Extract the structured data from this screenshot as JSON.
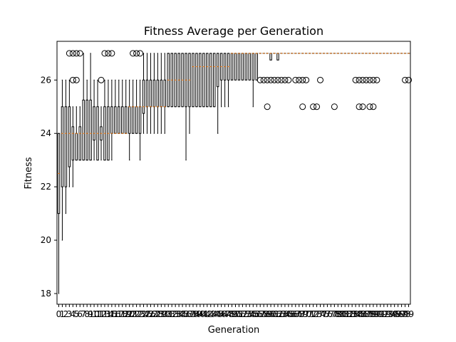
{
  "chart_data": {
    "type": "box",
    "title": "Fitness Average per Generation",
    "xlabel": "Generation",
    "ylabel": "Fitness",
    "ylim": [
      17.6,
      27.45
    ],
    "y_ticks": [
      18,
      20,
      22,
      24,
      26
    ],
    "grid": false,
    "legend": "none",
    "colors": {
      "box": "#000000",
      "median": "#ff7f0e",
      "outlier": "#000000"
    },
    "generations_total": 100,
    "boxes": [
      {
        "gen": 0,
        "q1": 21.0,
        "median": 22.5,
        "q3": 24.0,
        "whislo": 18,
        "whishi": 24,
        "fliers": []
      },
      {
        "gen": 1,
        "q1": 22.0,
        "median": 24.0,
        "q3": 25.0,
        "whislo": 20,
        "whishi": 26,
        "fliers": []
      },
      {
        "gen": 2,
        "q1": 22.0,
        "median": 24.0,
        "q3": 25.0,
        "whislo": 21,
        "whishi": 26,
        "fliers": []
      },
      {
        "gen": 3,
        "q1": 22.75,
        "median": 24.0,
        "q3": 25.0,
        "whislo": 22,
        "whishi": 26,
        "fliers": [
          27
        ]
      },
      {
        "gen": 4,
        "q1": 23.0,
        "median": 24.0,
        "q3": 24.25,
        "whislo": 22,
        "whishi": 25,
        "fliers": [
          26,
          27
        ]
      },
      {
        "gen": 5,
        "q1": 23.0,
        "median": 24.0,
        "q3": 24.0,
        "whislo": 23,
        "whishi": 25,
        "fliers": [
          26,
          27
        ]
      },
      {
        "gen": 6,
        "q1": 23.0,
        "median": 24.0,
        "q3": 24.25,
        "whislo": 23,
        "whishi": 25,
        "fliers": [
          27
        ]
      },
      {
        "gen": 7,
        "q1": 23.0,
        "median": 24.0,
        "q3": 25.25,
        "whislo": 23,
        "whishi": 27,
        "fliers": []
      },
      {
        "gen": 8,
        "q1": 23.0,
        "median": 24.0,
        "q3": 25.25,
        "whislo": 23,
        "whishi": 26,
        "fliers": []
      },
      {
        "gen": 9,
        "q1": 23.0,
        "median": 24.0,
        "q3": 25.25,
        "whislo": 23,
        "whishi": 27,
        "fliers": []
      },
      {
        "gen": 10,
        "q1": 23.75,
        "median": 24.0,
        "q3": 25.0,
        "whislo": 23,
        "whishi": 26,
        "fliers": []
      },
      {
        "gen": 11,
        "q1": 23.0,
        "median": 24.0,
        "q3": 25.0,
        "whislo": 23,
        "whishi": 26,
        "fliers": []
      },
      {
        "gen": 12,
        "q1": 23.75,
        "median": 24.0,
        "q3": 24.25,
        "whislo": 23,
        "whishi": 25,
        "fliers": [
          26
        ]
      },
      {
        "gen": 13,
        "q1": 23.0,
        "median": 24.0,
        "q3": 25.0,
        "whislo": 23,
        "whishi": 26,
        "fliers": [
          27
        ]
      },
      {
        "gen": 14,
        "q1": 23.0,
        "median": 24.0,
        "q3": 25.0,
        "whislo": 23,
        "whishi": 26,
        "fliers": [
          27
        ]
      },
      {
        "gen": 15,
        "q1": 24.0,
        "median": 24.0,
        "q3": 25.0,
        "whislo": 23,
        "whishi": 26,
        "fliers": [
          27
        ]
      },
      {
        "gen": 16,
        "q1": 24.0,
        "median": 24.0,
        "q3": 25.0,
        "whislo": 24,
        "whishi": 26,
        "fliers": []
      },
      {
        "gen": 17,
        "q1": 24.0,
        "median": 24.0,
        "q3": 25.0,
        "whislo": 24,
        "whishi": 26,
        "fliers": []
      },
      {
        "gen": 18,
        "q1": 24.0,
        "median": 24.0,
        "q3": 25.0,
        "whislo": 24,
        "whishi": 26,
        "fliers": []
      },
      {
        "gen": 19,
        "q1": 24.0,
        "median": 24.0,
        "q3": 25.0,
        "whislo": 24,
        "whishi": 26,
        "fliers": []
      },
      {
        "gen": 20,
        "q1": 24.0,
        "median": 25.0,
        "q3": 25.0,
        "whislo": 23,
        "whishi": 26,
        "fliers": []
      },
      {
        "gen": 21,
        "q1": 24.0,
        "median": 25.0,
        "q3": 25.0,
        "whislo": 24,
        "whishi": 26,
        "fliers": [
          27
        ]
      },
      {
        "gen": 22,
        "q1": 24.0,
        "median": 25.0,
        "q3": 25.0,
        "whislo": 24,
        "whishi": 26,
        "fliers": [
          27
        ]
      },
      {
        "gen": 23,
        "q1": 24.0,
        "median": 25.0,
        "q3": 25.0,
        "whislo": 23,
        "whishi": 26,
        "fliers": [
          27
        ]
      },
      {
        "gen": 24,
        "q1": 24.75,
        "median": 25.0,
        "q3": 26.0,
        "whislo": 24,
        "whishi": 27,
        "fliers": []
      },
      {
        "gen": 25,
        "q1": 25.0,
        "median": 25.0,
        "q3": 26.0,
        "whislo": 24,
        "whishi": 27,
        "fliers": []
      },
      {
        "gen": 26,
        "q1": 25.0,
        "median": 25.0,
        "q3": 26.0,
        "whislo": 24,
        "whishi": 27,
        "fliers": []
      },
      {
        "gen": 27,
        "q1": 25.0,
        "median": 25.0,
        "q3": 26.0,
        "whislo": 24,
        "whishi": 27,
        "fliers": []
      },
      {
        "gen": 28,
        "q1": 25.0,
        "median": 25.0,
        "q3": 26.0,
        "whislo": 24,
        "whishi": 27,
        "fliers": []
      },
      {
        "gen": 29,
        "q1": 25.0,
        "median": 25.0,
        "q3": 26.0,
        "whislo": 24,
        "whishi": 27,
        "fliers": []
      },
      {
        "gen": 30,
        "q1": 25.0,
        "median": 25.0,
        "q3": 26.0,
        "whislo": 24,
        "whishi": 27,
        "fliers": []
      },
      {
        "gen": 31,
        "q1": 25.0,
        "median": 26.0,
        "q3": 27.0,
        "whislo": 25,
        "whishi": 27,
        "fliers": []
      },
      {
        "gen": 32,
        "q1": 25.0,
        "median": 26.0,
        "q3": 27.0,
        "whislo": 25,
        "whishi": 27,
        "fliers": []
      },
      {
        "gen": 33,
        "q1": 25.0,
        "median": 26.0,
        "q3": 27.0,
        "whislo": 25,
        "whishi": 27,
        "fliers": []
      },
      {
        "gen": 34,
        "q1": 25.0,
        "median": 26.0,
        "q3": 27.0,
        "whislo": 25,
        "whishi": 27,
        "fliers": []
      },
      {
        "gen": 35,
        "q1": 25.0,
        "median": 26.0,
        "q3": 27.0,
        "whislo": 25,
        "whishi": 27,
        "fliers": []
      },
      {
        "gen": 36,
        "q1": 25.0,
        "median": 26.0,
        "q3": 27.0,
        "whislo": 23,
        "whishi": 27,
        "fliers": []
      },
      {
        "gen": 37,
        "q1": 25.0,
        "median": 26.0,
        "q3": 27.0,
        "whislo": 24,
        "whishi": 27,
        "fliers": []
      },
      {
        "gen": 38,
        "q1": 25.0,
        "median": 26.5,
        "q3": 27.0,
        "whislo": 25,
        "whishi": 27,
        "fliers": []
      },
      {
        "gen": 39,
        "q1": 25.0,
        "median": 26.5,
        "q3": 27.0,
        "whislo": 25,
        "whishi": 27,
        "fliers": []
      },
      {
        "gen": 40,
        "q1": 25.0,
        "median": 26.5,
        "q3": 27.0,
        "whislo": 25,
        "whishi": 27,
        "fliers": []
      },
      {
        "gen": 41,
        "q1": 25.0,
        "median": 26.5,
        "q3": 27.0,
        "whislo": 25,
        "whishi": 27,
        "fliers": []
      },
      {
        "gen": 42,
        "q1": 25.0,
        "median": 26.5,
        "q3": 27.0,
        "whislo": 25,
        "whishi": 27,
        "fliers": []
      },
      {
        "gen": 43,
        "q1": 25.0,
        "median": 26.5,
        "q3": 27.0,
        "whislo": 25,
        "whishi": 27,
        "fliers": []
      },
      {
        "gen": 44,
        "q1": 25.0,
        "median": 26.5,
        "q3": 27.0,
        "whislo": 25,
        "whishi": 27,
        "fliers": []
      },
      {
        "gen": 45,
        "q1": 25.75,
        "median": 26.5,
        "q3": 27.0,
        "whislo": 24,
        "whishi": 27,
        "fliers": []
      },
      {
        "gen": 46,
        "q1": 26.0,
        "median": 26.5,
        "q3": 27.0,
        "whislo": 25,
        "whishi": 27,
        "fliers": []
      },
      {
        "gen": 47,
        "q1": 26.0,
        "median": 26.5,
        "q3": 27.0,
        "whislo": 25,
        "whishi": 27,
        "fliers": []
      },
      {
        "gen": 48,
        "q1": 26.0,
        "median": 26.5,
        "q3": 27.0,
        "whislo": 25,
        "whishi": 27,
        "fliers": []
      },
      {
        "gen": 49,
        "q1": 26.0,
        "median": 27.0,
        "q3": 27.0,
        "whislo": 26,
        "whishi": 27,
        "fliers": []
      },
      {
        "gen": 50,
        "q1": 26.0,
        "median": 27.0,
        "q3": 27.0,
        "whislo": 26,
        "whishi": 27,
        "fliers": []
      },
      {
        "gen": 51,
        "q1": 26.0,
        "median": 27.0,
        "q3": 27.0,
        "whislo": 26,
        "whishi": 27,
        "fliers": []
      },
      {
        "gen": 52,
        "q1": 26.0,
        "median": 27.0,
        "q3": 27.0,
        "whislo": 26,
        "whishi": 27,
        "fliers": []
      },
      {
        "gen": 53,
        "q1": 26.0,
        "median": 27.0,
        "q3": 27.0,
        "whislo": 26,
        "whishi": 27,
        "fliers": []
      },
      {
        "gen": 54,
        "q1": 26.0,
        "median": 27.0,
        "q3": 27.0,
        "whislo": 26,
        "whishi": 27,
        "fliers": []
      },
      {
        "gen": 55,
        "q1": 26.0,
        "median": 27.0,
        "q3": 27.0,
        "whislo": 25,
        "whishi": 27,
        "fliers": []
      },
      {
        "gen": 56,
        "q1": 26.0,
        "median": 27.0,
        "q3": 27.0,
        "whislo": 26,
        "whishi": 27,
        "fliers": []
      },
      {
        "gen": 57,
        "q1": 27.0,
        "median": 27.0,
        "q3": 27.0,
        "whislo": 27,
        "whishi": 27,
        "fliers": [
          26
        ]
      },
      {
        "gen": 58,
        "q1": 27.0,
        "median": 27.0,
        "q3": 27.0,
        "whislo": 27,
        "whishi": 27,
        "fliers": [
          26
        ]
      },
      {
        "gen": 59,
        "q1": 27.0,
        "median": 27.0,
        "q3": 27.0,
        "whislo": 27,
        "whishi": 27,
        "fliers": [
          25,
          26
        ]
      },
      {
        "gen": 60,
        "q1": 26.75,
        "median": 27.0,
        "q3": 27.0,
        "whislo": 26.75,
        "whishi": 27,
        "fliers": [
          26
        ]
      },
      {
        "gen": 61,
        "q1": 27.0,
        "median": 27.0,
        "q3": 27.0,
        "whislo": 27,
        "whishi": 27,
        "fliers": [
          26
        ]
      },
      {
        "gen": 62,
        "q1": 26.75,
        "median": 27.0,
        "q3": 27.0,
        "whislo": 26.75,
        "whishi": 27,
        "fliers": [
          26
        ]
      },
      {
        "gen": 63,
        "q1": 27.0,
        "median": 27.0,
        "q3": 27.0,
        "whislo": 27,
        "whishi": 27,
        "fliers": [
          26
        ]
      },
      {
        "gen": 64,
        "q1": 27.0,
        "median": 27.0,
        "q3": 27.0,
        "whislo": 27,
        "whishi": 27,
        "fliers": [
          26
        ]
      },
      {
        "gen": 65,
        "q1": 27.0,
        "median": 27.0,
        "q3": 27.0,
        "whislo": 27,
        "whishi": 27,
        "fliers": [
          26
        ]
      },
      {
        "gen": 66,
        "q1": 27.0,
        "median": 27.0,
        "q3": 27.0,
        "whislo": 27,
        "whishi": 27,
        "fliers": []
      },
      {
        "gen": 67,
        "q1": 27.0,
        "median": 27.0,
        "q3": 27.0,
        "whislo": 27,
        "whishi": 27,
        "fliers": [
          26
        ]
      },
      {
        "gen": 68,
        "q1": 27.0,
        "median": 27.0,
        "q3": 27.0,
        "whislo": 27,
        "whishi": 27,
        "fliers": [
          26
        ]
      },
      {
        "gen": 69,
        "q1": 27.0,
        "median": 27.0,
        "q3": 27.0,
        "whislo": 27,
        "whishi": 27,
        "fliers": [
          25,
          26
        ]
      },
      {
        "gen": 70,
        "q1": 27.0,
        "median": 27.0,
        "q3": 27.0,
        "whislo": 27,
        "whishi": 27,
        "fliers": [
          26
        ]
      },
      {
        "gen": 71,
        "q1": 27.0,
        "median": 27.0,
        "q3": 27.0,
        "whislo": 27,
        "whishi": 27,
        "fliers": []
      },
      {
        "gen": 72,
        "q1": 27.0,
        "median": 27.0,
        "q3": 27.0,
        "whislo": 27,
        "whishi": 27,
        "fliers": [
          25
        ]
      },
      {
        "gen": 73,
        "q1": 27.0,
        "median": 27.0,
        "q3": 27.0,
        "whislo": 27,
        "whishi": 27,
        "fliers": [
          25
        ]
      },
      {
        "gen": 74,
        "q1": 27.0,
        "median": 27.0,
        "q3": 27.0,
        "whislo": 27,
        "whishi": 27,
        "fliers": [
          26
        ]
      },
      {
        "gen": 75,
        "q1": 27.0,
        "median": 27.0,
        "q3": 27.0,
        "whislo": 27,
        "whishi": 27,
        "fliers": []
      },
      {
        "gen": 76,
        "q1": 27.0,
        "median": 27.0,
        "q3": 27.0,
        "whislo": 27,
        "whishi": 27,
        "fliers": []
      },
      {
        "gen": 77,
        "q1": 27.0,
        "median": 27.0,
        "q3": 27.0,
        "whislo": 27,
        "whishi": 27,
        "fliers": []
      },
      {
        "gen": 78,
        "q1": 27.0,
        "median": 27.0,
        "q3": 27.0,
        "whislo": 27,
        "whishi": 27,
        "fliers": [
          25
        ]
      },
      {
        "gen": 79,
        "q1": 27.0,
        "median": 27.0,
        "q3": 27.0,
        "whislo": 27,
        "whishi": 27,
        "fliers": []
      },
      {
        "gen": 80,
        "q1": 27.0,
        "median": 27.0,
        "q3": 27.0,
        "whislo": 27,
        "whishi": 27,
        "fliers": []
      },
      {
        "gen": 81,
        "q1": 27.0,
        "median": 27.0,
        "q3": 27.0,
        "whislo": 27,
        "whishi": 27,
        "fliers": []
      },
      {
        "gen": 82,
        "q1": 27.0,
        "median": 27.0,
        "q3": 27.0,
        "whislo": 27,
        "whishi": 27,
        "fliers": []
      },
      {
        "gen": 83,
        "q1": 27.0,
        "median": 27.0,
        "q3": 27.0,
        "whislo": 27,
        "whishi": 27,
        "fliers": []
      },
      {
        "gen": 84,
        "q1": 27.0,
        "median": 27.0,
        "q3": 27.0,
        "whislo": 27,
        "whishi": 27,
        "fliers": [
          26
        ]
      },
      {
        "gen": 85,
        "q1": 27.0,
        "median": 27.0,
        "q3": 27.0,
        "whislo": 27,
        "whishi": 27,
        "fliers": [
          25,
          26
        ]
      },
      {
        "gen": 86,
        "q1": 27.0,
        "median": 27.0,
        "q3": 27.0,
        "whislo": 27,
        "whishi": 27,
        "fliers": [
          25,
          26
        ]
      },
      {
        "gen": 87,
        "q1": 27.0,
        "median": 27.0,
        "q3": 27.0,
        "whislo": 27,
        "whishi": 27,
        "fliers": [
          26
        ]
      },
      {
        "gen": 88,
        "q1": 27.0,
        "median": 27.0,
        "q3": 27.0,
        "whislo": 27,
        "whishi": 27,
        "fliers": [
          25,
          26
        ]
      },
      {
        "gen": 89,
        "q1": 27.0,
        "median": 27.0,
        "q3": 27.0,
        "whislo": 27,
        "whishi": 27,
        "fliers": [
          25,
          26
        ]
      },
      {
        "gen": 90,
        "q1": 27.0,
        "median": 27.0,
        "q3": 27.0,
        "whislo": 27,
        "whishi": 27,
        "fliers": [
          26
        ]
      },
      {
        "gen": 91,
        "q1": 27.0,
        "median": 27.0,
        "q3": 27.0,
        "whislo": 27,
        "whishi": 27,
        "fliers": []
      },
      {
        "gen": 92,
        "q1": 27.0,
        "median": 27.0,
        "q3": 27.0,
        "whislo": 27,
        "whishi": 27,
        "fliers": []
      },
      {
        "gen": 93,
        "q1": 27.0,
        "median": 27.0,
        "q3": 27.0,
        "whislo": 27,
        "whishi": 27,
        "fliers": []
      },
      {
        "gen": 94,
        "q1": 27.0,
        "median": 27.0,
        "q3": 27.0,
        "whislo": 27,
        "whishi": 27,
        "fliers": []
      },
      {
        "gen": 95,
        "q1": 27.0,
        "median": 27.0,
        "q3": 27.0,
        "whislo": 27,
        "whishi": 27,
        "fliers": []
      },
      {
        "gen": 96,
        "q1": 27.0,
        "median": 27.0,
        "q3": 27.0,
        "whislo": 27,
        "whishi": 27,
        "fliers": []
      },
      {
        "gen": 97,
        "q1": 27.0,
        "median": 27.0,
        "q3": 27.0,
        "whislo": 27,
        "whishi": 27,
        "fliers": []
      },
      {
        "gen": 98,
        "q1": 27.0,
        "median": 27.0,
        "q3": 27.0,
        "whislo": 27,
        "whishi": 27,
        "fliers": [
          26
        ]
      },
      {
        "gen": 99,
        "q1": 27.0,
        "median": 27.0,
        "q3": 27.0,
        "whislo": 27,
        "whishi": 27,
        "fliers": [
          26
        ]
      }
    ]
  }
}
